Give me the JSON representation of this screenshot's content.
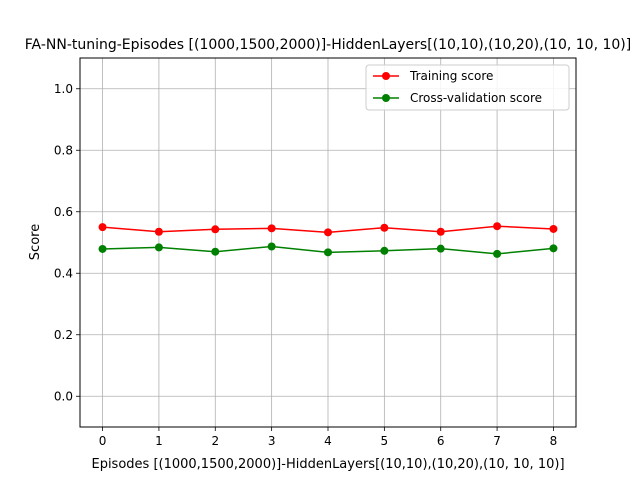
{
  "chart_data": {
    "type": "line",
    "title": "FA-NN-tuning-Episodes [(1000,1500,2000)]-HiddenLayers[(10,10),(10,20),(10, 10, 10)]",
    "xlabel": "Episodes [(1000,1500,2000)]-HiddenLayers[(10,10),(10,20),(10, 10, 10)]",
    "ylabel": "Score",
    "x": [
      0,
      1,
      2,
      3,
      4,
      5,
      6,
      7,
      8
    ],
    "xlim": [
      -0.4,
      8.4
    ],
    "ylim": [
      -0.1,
      1.1
    ],
    "xticks": [
      "0",
      "1",
      "2",
      "3",
      "4",
      "5",
      "6",
      "7",
      "8"
    ],
    "yticks": [
      "0.0",
      "0.2",
      "0.4",
      "0.6",
      "0.8",
      "1.0"
    ],
    "grid": true,
    "legend_position": "top-right",
    "series": [
      {
        "name": "Training score",
        "color": "#ff0000",
        "marker": "circle",
        "values": [
          0.55,
          0.535,
          0.543,
          0.546,
          0.533,
          0.548,
          0.535,
          0.553,
          0.544
        ]
      },
      {
        "name": "Cross-validation score",
        "color": "#008000",
        "marker": "circle",
        "values": [
          0.479,
          0.484,
          0.47,
          0.487,
          0.468,
          0.473,
          0.48,
          0.463,
          0.481
        ]
      }
    ]
  }
}
